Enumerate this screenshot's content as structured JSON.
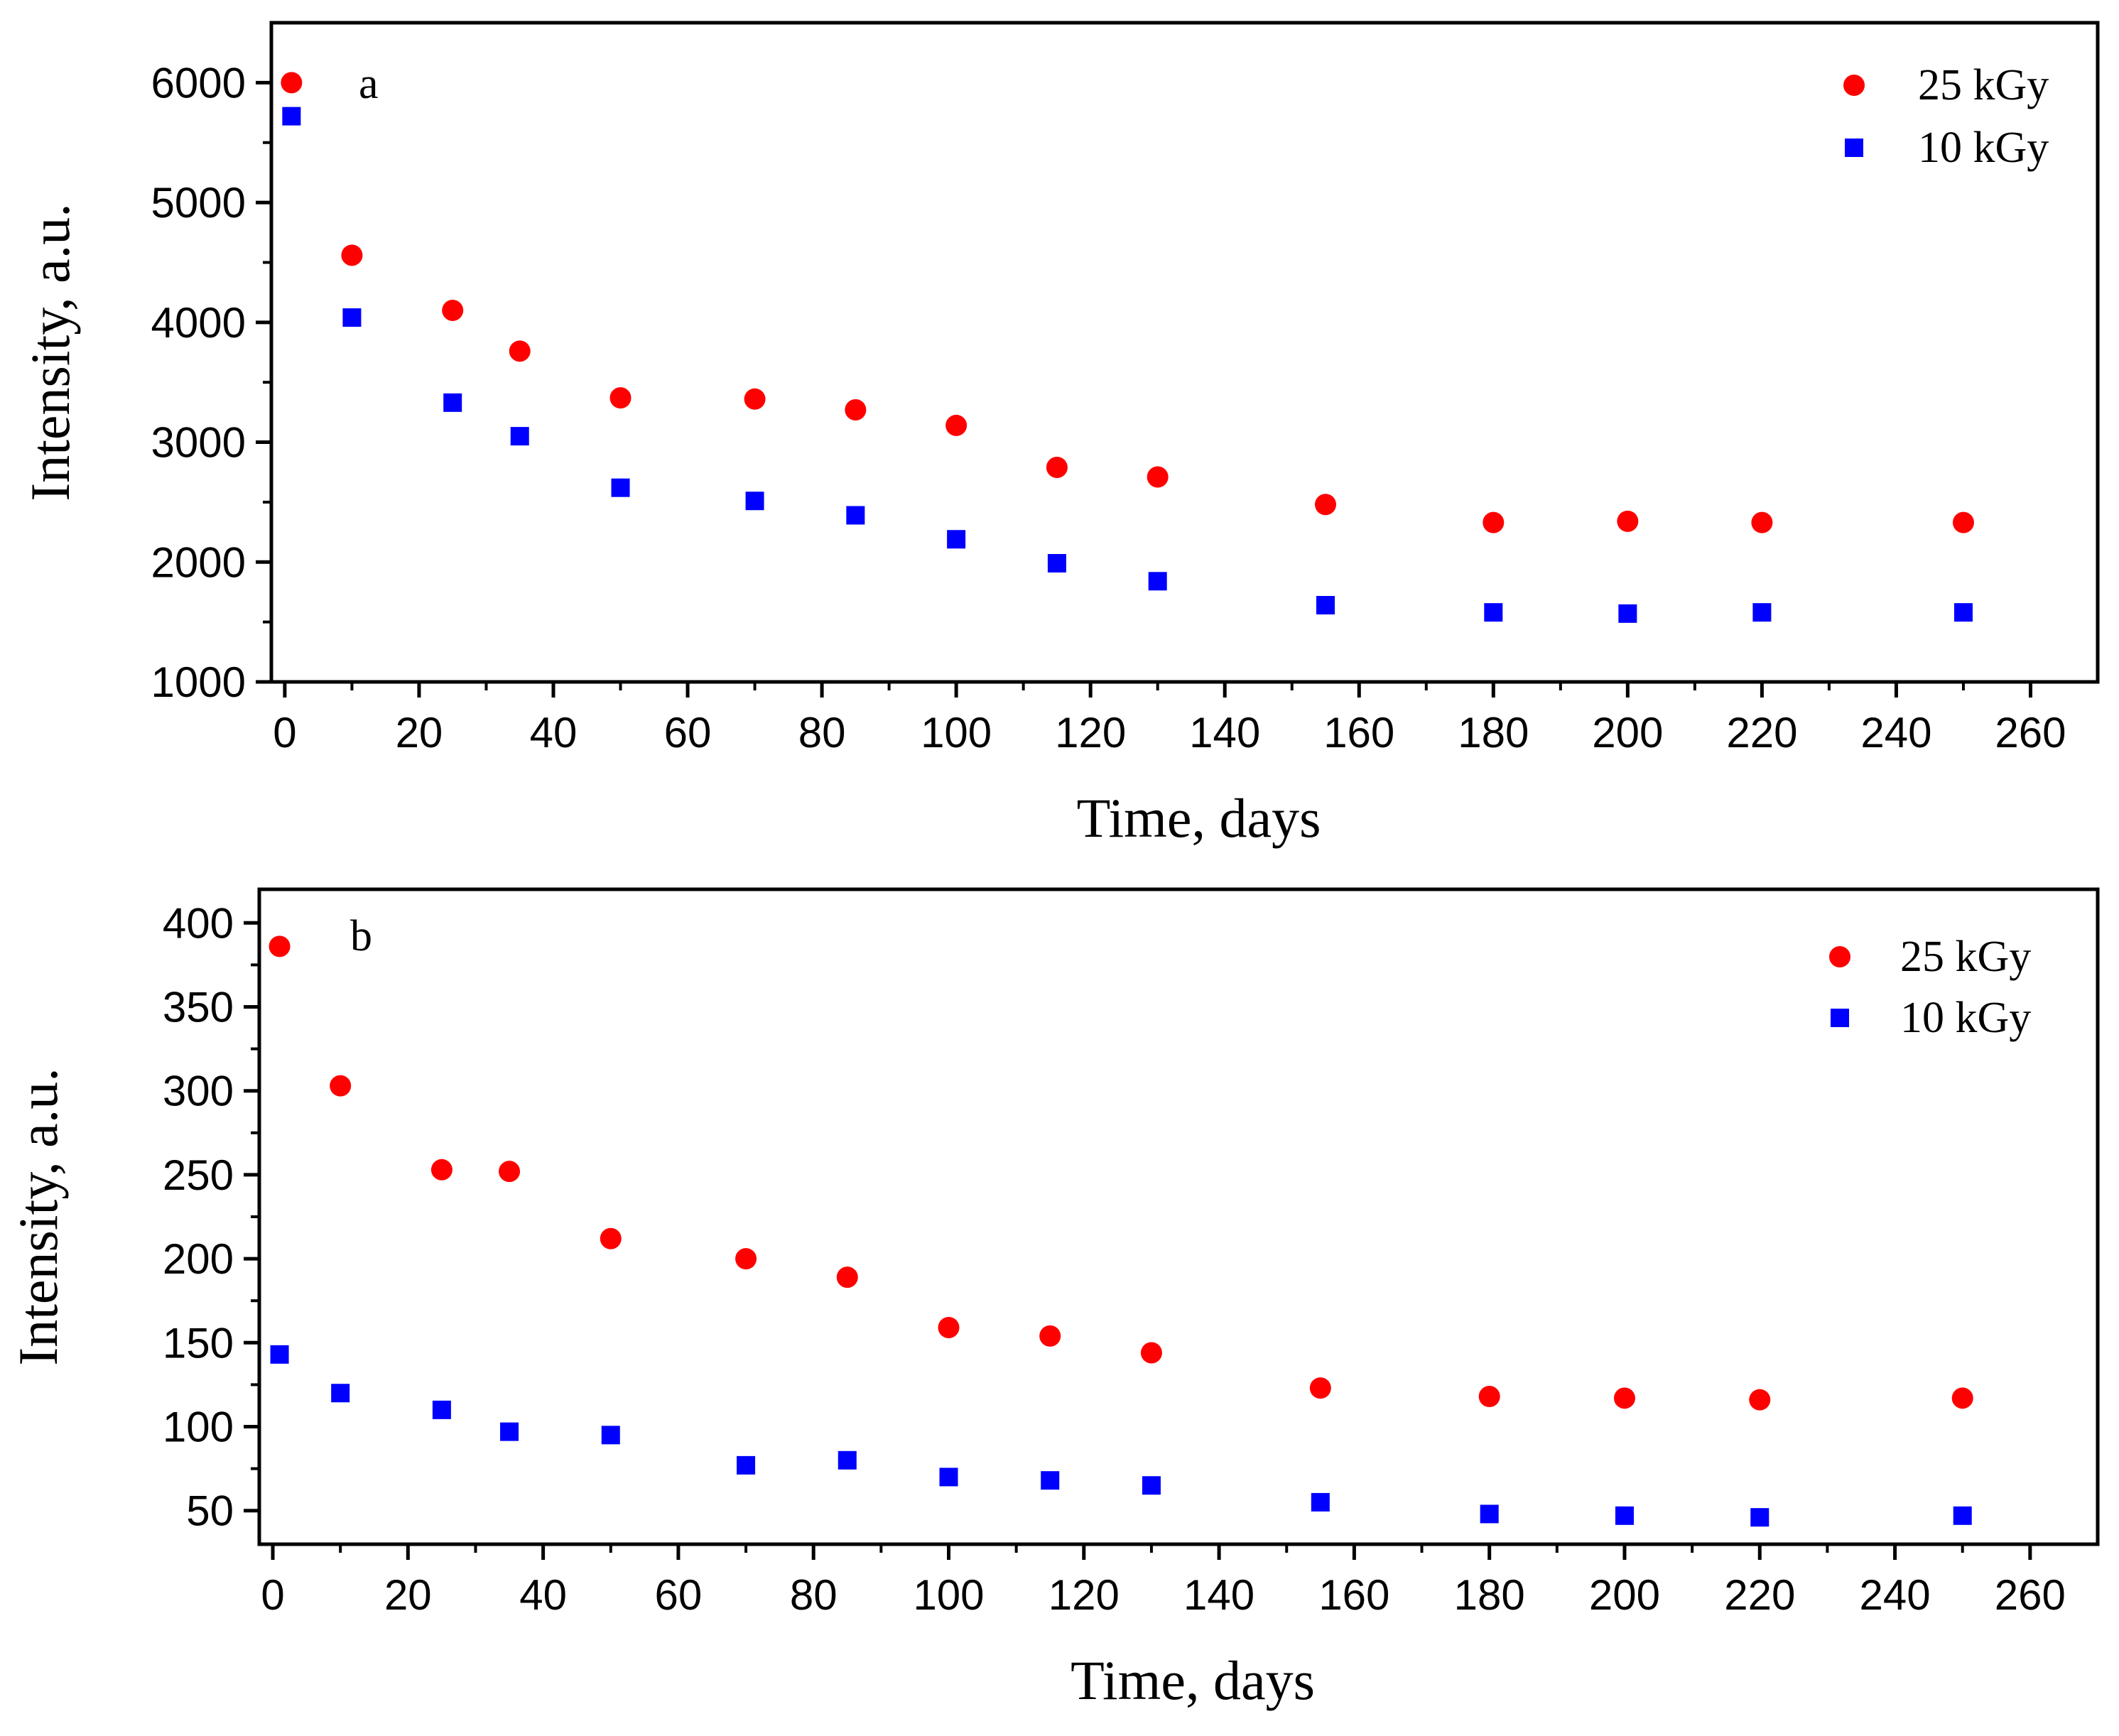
{
  "chart_data": [
    {
      "type": "scatter",
      "panel_label": "a",
      "title": "",
      "xlabel": "Time, days",
      "ylabel": "Intensity, a.u.",
      "xlim": [
        -2,
        270
      ],
      "ylim": [
        1000,
        6500
      ],
      "xticks": [
        0,
        20,
        40,
        60,
        80,
        100,
        120,
        140,
        160,
        180,
        200,
        220,
        240,
        260
      ],
      "yticks": [
        1000,
        2000,
        3000,
        4000,
        5000,
        6000
      ],
      "x": [
        1,
        10,
        25,
        35,
        50,
        70,
        85,
        100,
        115,
        130,
        155,
        180,
        200,
        220,
        250
      ],
      "legend_position": "top-right",
      "series": [
        {
          "name": "25 kGy",
          "marker": "circle",
          "color": "#ff0000",
          "values": [
            6000,
            4560,
            4100,
            3760,
            3370,
            3360,
            3270,
            3140,
            2790,
            2710,
            2480,
            2330,
            2340,
            2330,
            2330
          ]
        },
        {
          "name": "10 kGy",
          "marker": "square",
          "color": "#0000ff",
          "values": [
            5720,
            4040,
            3330,
            3050,
            2620,
            2510,
            2390,
            2190,
            1990,
            1840,
            1640,
            1580,
            1570,
            1580,
            1580
          ]
        }
      ]
    },
    {
      "type": "scatter",
      "panel_label": "b",
      "title": "",
      "xlabel": "Time, days",
      "ylabel": "Intensity, a.u.",
      "xlim": [
        -2,
        270
      ],
      "ylim": [
        30,
        420
      ],
      "xticks": [
        0,
        20,
        40,
        60,
        80,
        100,
        120,
        140,
        160,
        180,
        200,
        220,
        240,
        260
      ],
      "yticks": [
        50,
        100,
        150,
        200,
        250,
        300,
        350,
        400
      ],
      "x": [
        1,
        10,
        25,
        35,
        50,
        70,
        85,
        100,
        115,
        130,
        155,
        180,
        200,
        220,
        250
      ],
      "legend_position": "top-right",
      "series": [
        {
          "name": "25 kGy",
          "marker": "circle",
          "color": "#ff0000",
          "values": [
            386,
            303,
            253,
            252,
            212,
            200,
            189,
            159,
            154,
            144,
            123,
            118,
            117,
            116,
            117
          ]
        },
        {
          "name": "10 kGy",
          "marker": "square",
          "color": "#0000ff",
          "values": [
            143,
            120,
            110,
            97,
            95,
            77,
            80,
            70,
            68,
            65,
            55,
            48,
            47,
            46,
            47
          ]
        }
      ]
    }
  ]
}
